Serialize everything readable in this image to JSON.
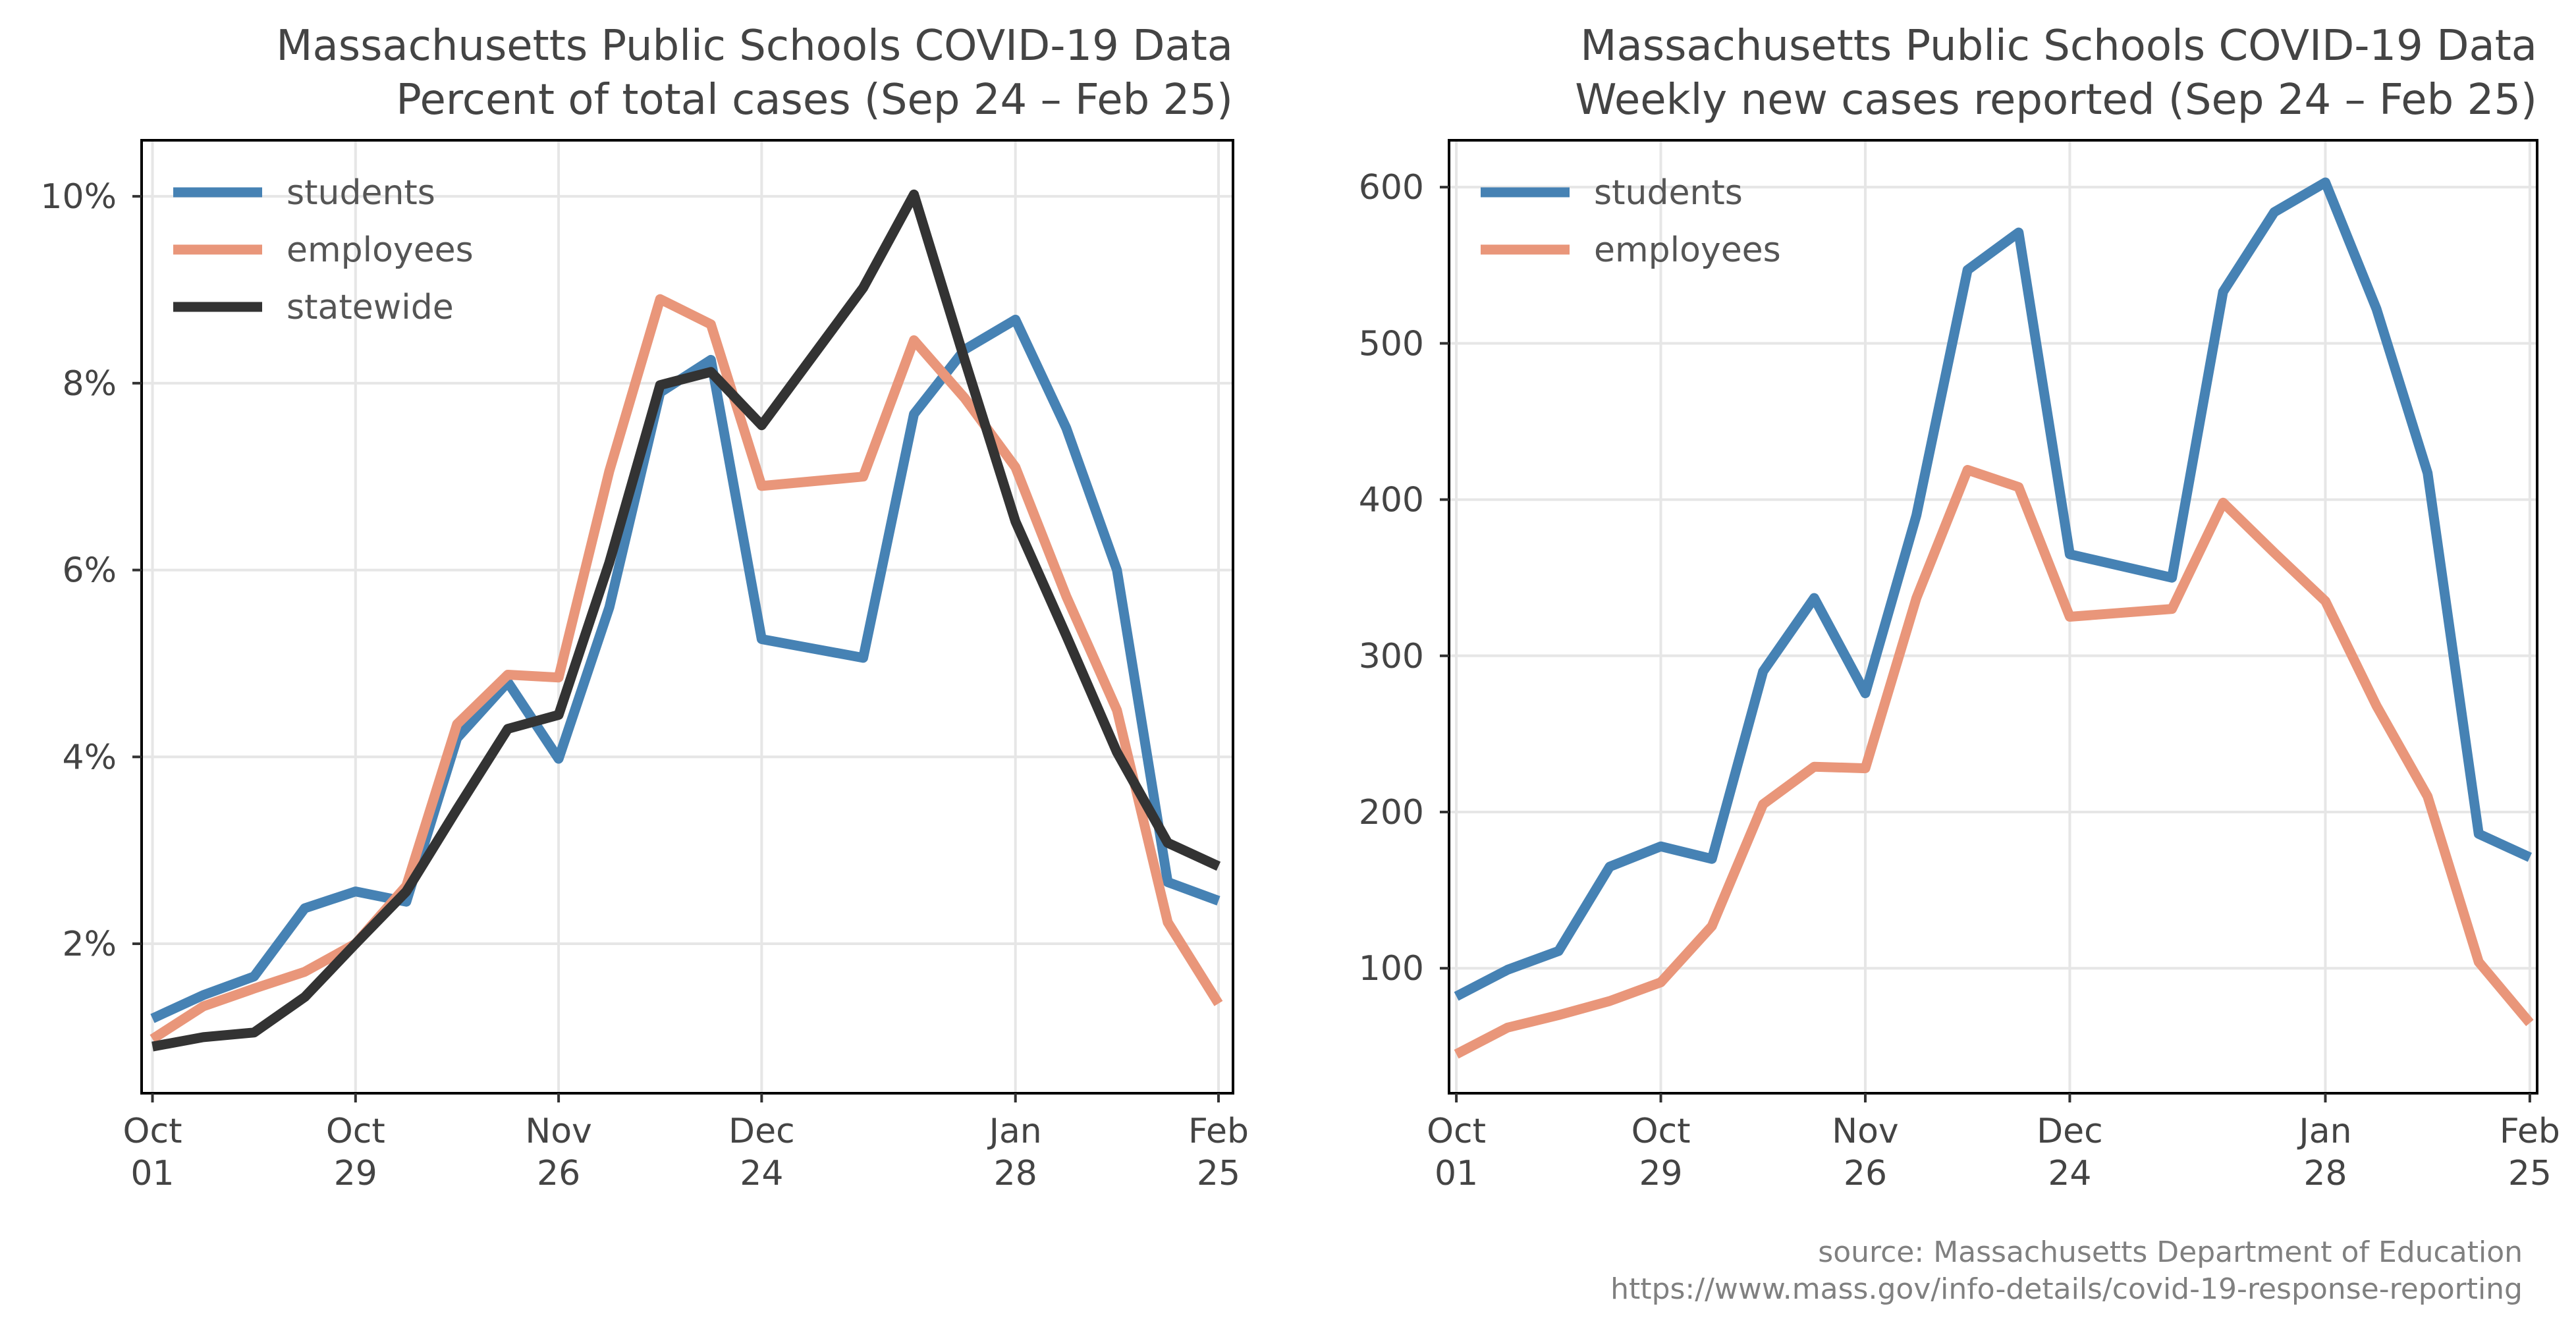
{
  "chart_data": [
    {
      "type": "line",
      "title": "Massachusetts Public Schools COVID-19 Data",
      "subtitle": "Percent of total cases (Sep 24 – Feb 25)",
      "xlabel": "",
      "ylabel": "",
      "x_ticks": [
        {
          "label": [
            "Oct",
            "01"
          ],
          "x": 0
        },
        {
          "label": [
            "Oct",
            "29"
          ],
          "x": 28
        },
        {
          "label": [
            "Nov",
            "26"
          ],
          "x": 56
        },
        {
          "label": [
            "Dec",
            "24"
          ],
          "x": 84
        },
        {
          "label": [
            "Jan",
            "28"
          ],
          "x": 119
        },
        {
          "label": [
            "Feb",
            "25"
          ],
          "x": 147
        }
      ],
      "xlim": [
        -1.5,
        149
      ],
      "ylim": [
        0.4,
        10.6
      ],
      "y_ticks": [
        {
          "label": "2%",
          "value": 2
        },
        {
          "label": "4%",
          "value": 4
        },
        {
          "label": "6%",
          "value": 6
        },
        {
          "label": "8%",
          "value": 8
        },
        {
          "label": "10%",
          "value": 10
        }
      ],
      "grid": true,
      "legend_position": "top-left",
      "series": [
        {
          "name": "students",
          "color": "#4682b4",
          "x": [
            0,
            7,
            14,
            21,
            28,
            35,
            42,
            49,
            56,
            63,
            70,
            77,
            84,
            98,
            105,
            112,
            119,
            126,
            133,
            140,
            147
          ],
          "y": [
            1.2,
            1.45,
            1.65,
            2.38,
            2.56,
            2.45,
            4.2,
            4.8,
            3.98,
            5.6,
            7.9,
            8.25,
            5.26,
            5.06,
            7.67,
            8.36,
            8.68,
            7.52,
            6.0,
            2.66,
            2.46
          ]
        },
        {
          "name": "employees",
          "color": "#e9967a",
          "x": [
            0,
            7,
            14,
            21,
            28,
            35,
            42,
            49,
            56,
            63,
            70,
            77,
            84,
            98,
            105,
            112,
            119,
            126,
            133,
            140,
            147
          ],
          "y": [
            0.98,
            1.33,
            1.52,
            1.7,
            2.0,
            2.62,
            4.35,
            4.88,
            4.85,
            7.06,
            8.9,
            8.63,
            6.9,
            7.0,
            8.46,
            7.84,
            7.1,
            5.72,
            4.5,
            2.23,
            1.36
          ]
        },
        {
          "name": "statewide",
          "color": "#333333",
          "x": [
            0,
            7,
            14,
            21,
            28,
            35,
            42,
            49,
            56,
            63,
            70,
            77,
            84,
            98,
            105,
            112,
            119,
            126,
            133,
            140,
            147
          ],
          "y": [
            0.9,
            1.0,
            1.05,
            1.43,
            2.0,
            2.56,
            3.44,
            4.3,
            4.45,
            6.08,
            7.98,
            8.12,
            7.55,
            9.02,
            10.02,
            8.25,
            6.52,
            5.3,
            4.05,
            3.08,
            2.83
          ]
        }
      ]
    },
    {
      "type": "line",
      "title": "Massachusetts Public Schools COVID-19 Data",
      "subtitle": "Weekly new cases reported (Sep 24 – Feb 25)",
      "xlabel": "",
      "ylabel": "",
      "x_ticks": [
        {
          "label": [
            "Oct",
            "01"
          ],
          "x": 0
        },
        {
          "label": [
            "Oct",
            "29"
          ],
          "x": 28
        },
        {
          "label": [
            "Nov",
            "26"
          ],
          "x": 56
        },
        {
          "label": [
            "Dec",
            "24"
          ],
          "x": 84
        },
        {
          "label": [
            "Jan",
            "28"
          ],
          "x": 119
        },
        {
          "label": [
            "Feb",
            "25"
          ],
          "x": 147
        }
      ],
      "xlim": [
        -1,
        148
      ],
      "ylim": [
        20,
        630
      ],
      "y_ticks": [
        {
          "label": "100",
          "value": 100
        },
        {
          "label": "200",
          "value": 200
        },
        {
          "label": "300",
          "value": 300
        },
        {
          "label": "400",
          "value": 400
        },
        {
          "label": "500",
          "value": 500
        },
        {
          "label": "600",
          "value": 600
        }
      ],
      "grid": true,
      "legend_position": "top-left",
      "series": [
        {
          "name": "students",
          "color": "#4682b4",
          "x": [
            0,
            7,
            14,
            21,
            28,
            35,
            42,
            49,
            56,
            63,
            70,
            77,
            84,
            98,
            105,
            112,
            119,
            126,
            133,
            140,
            147
          ],
          "y": [
            82,
            99,
            111,
            165,
            178,
            170,
            290,
            337,
            276,
            390,
            547,
            571,
            365,
            350,
            533,
            584,
            603,
            522,
            417,
            186,
            171
          ]
        },
        {
          "name": "employees",
          "color": "#e9967a",
          "x": [
            0,
            7,
            14,
            21,
            28,
            35,
            42,
            49,
            56,
            63,
            70,
            77,
            84,
            98,
            105,
            112,
            119,
            126,
            133,
            140,
            147
          ],
          "y": [
            45,
            62,
            70,
            79,
            91,
            127,
            205,
            229,
            228,
            337,
            419,
            408,
            325,
            330,
            398,
            366,
            335,
            268,
            210,
            104,
            65
          ]
        }
      ]
    }
  ],
  "source": {
    "line1": "source: Massachusetts Department of Education",
    "line2": "https://www.mass.gov/info-details/covid-19-response-reporting"
  }
}
